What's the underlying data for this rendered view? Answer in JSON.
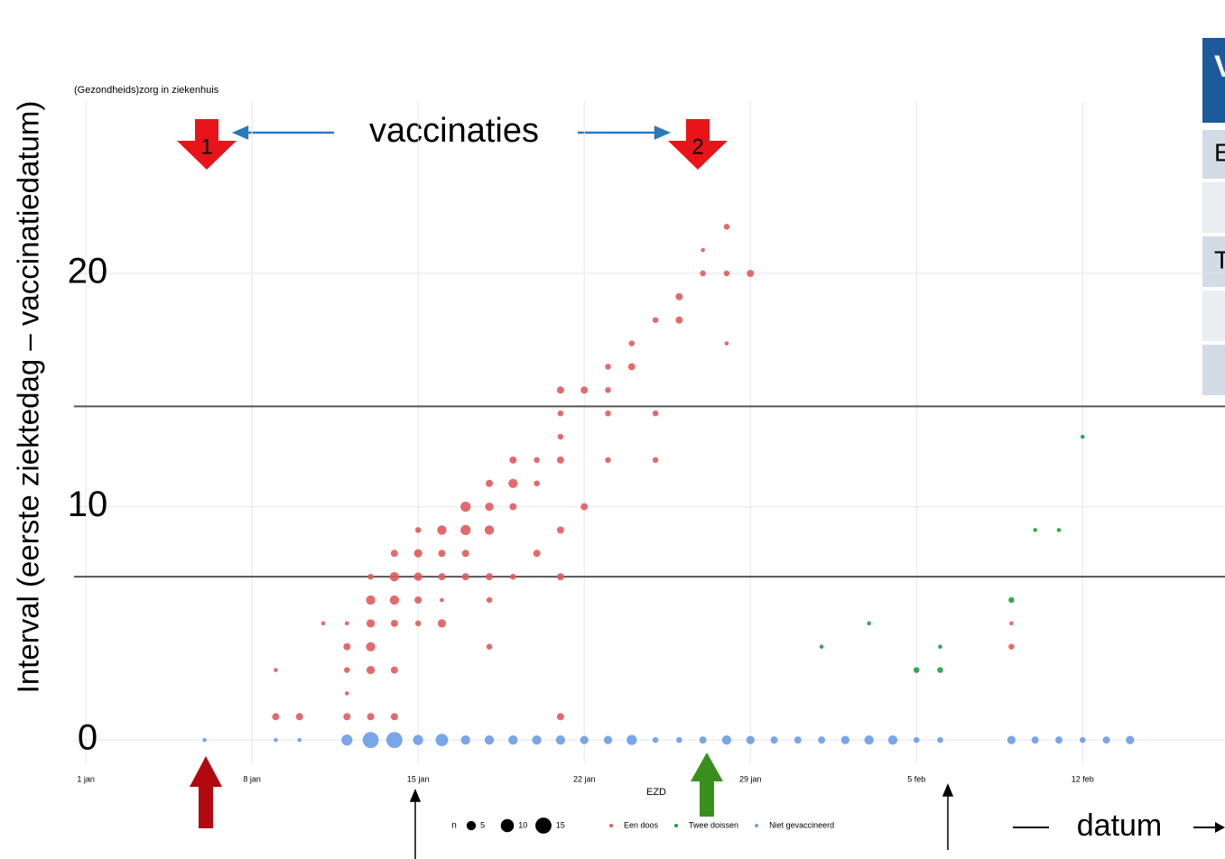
{
  "chart_data": {
    "type": "scatter",
    "subtitle": "(Gezondheids)zorg in ziekenhuis",
    "ylabel": "Interval (eerste ziektedag – vaccinatiedatum)",
    "xlabel": "EZD",
    "xlim": [
      0.5,
      49
    ],
    "ylim": [
      -1,
      27
    ],
    "xticks": [
      {
        "value": 1,
        "label": "1 jan"
      },
      {
        "value": 8,
        "label": "8 jan"
      },
      {
        "value": 15,
        "label": "15 jan"
      },
      {
        "value": 22,
        "label": "22 jan"
      },
      {
        "value": 29,
        "label": "29 jan"
      },
      {
        "value": 36,
        "label": "5 feb"
      },
      {
        "value": 43,
        "label": "12 feb"
      }
    ],
    "yticks": [
      0,
      10,
      20
    ],
    "grid": true,
    "reference_lines": [
      14.3,
      7
    ],
    "size_legend_title": "n",
    "size_legend": [
      5,
      10,
      15
    ],
    "series": [
      {
        "name": "Een doos",
        "color": "#e05a5c",
        "x": [
          9,
          9,
          10,
          11,
          12,
          12,
          12,
          12,
          12,
          13,
          13,
          13,
          13,
          13,
          13,
          14,
          14,
          14,
          14,
          14,
          14,
          15,
          15,
          15,
          15,
          15,
          16,
          16,
          16,
          16,
          16,
          17,
          17,
          17,
          17,
          18,
          18,
          18,
          18,
          18,
          18,
          19,
          19,
          19,
          19,
          20,
          20,
          20,
          21,
          21,
          21,
          21,
          21,
          21,
          21,
          22,
          22,
          23,
          23,
          23,
          23,
          24,
          24,
          25,
          25,
          25,
          26,
          26,
          27,
          27,
          28,
          28,
          28,
          29,
          40,
          40
        ],
        "values": [
          1,
          3,
          1,
          5,
          1,
          2,
          3,
          4,
          5,
          1,
          3,
          4,
          5,
          6,
          7,
          1,
          3,
          5,
          6,
          7,
          8,
          5,
          6,
          7,
          8,
          9,
          5,
          6,
          7,
          8,
          9,
          7,
          8,
          9,
          10,
          4,
          6,
          7,
          9,
          10,
          11,
          7,
          10,
          11,
          12,
          8,
          11,
          12,
          1,
          7,
          9,
          12,
          13,
          14,
          15,
          10,
          15,
          12,
          14,
          15,
          16,
          16,
          17,
          12,
          14,
          18,
          18,
          19,
          20,
          21,
          20,
          22,
          17,
          20,
          4,
          5
        ],
        "sizes": [
          3,
          1,
          3,
          1,
          3,
          1,
          2,
          3,
          1,
          3,
          4,
          5,
          4,
          5,
          2,
          3,
          3,
          3,
          5,
          5,
          3,
          2,
          3,
          4,
          4,
          2,
          4,
          1,
          3,
          3,
          5,
          3,
          3,
          6,
          6,
          2,
          2,
          3,
          5,
          4,
          3,
          2,
          3,
          5,
          3,
          3,
          2,
          2,
          3,
          3,
          3,
          3,
          2,
          2,
          3,
          3,
          3,
          2,
          2,
          2,
          2,
          3,
          2,
          2,
          2,
          2,
          3,
          3,
          2,
          1,
          2,
          2,
          1,
          3,
          2,
          1
        ]
      },
      {
        "name": "Twee doissen",
        "color": "#1f9e3c",
        "x": [
          32,
          34,
          36,
          37,
          37,
          40,
          41,
          42,
          43
        ],
        "values": [
          4,
          5,
          3,
          3,
          4,
          6,
          9,
          9,
          13
        ],
        "sizes": [
          1,
          1,
          2,
          2,
          1,
          2,
          1,
          1,
          1
        ]
      },
      {
        "name": "Niet gevaccineerd",
        "color": "#6a9be8",
        "x": [
          6,
          9,
          10,
          12,
          13,
          14,
          15,
          16,
          17,
          18,
          19,
          20,
          21,
          22,
          23,
          24,
          25,
          26,
          27,
          28,
          29,
          30,
          31,
          32,
          33,
          34,
          35,
          36,
          37,
          40,
          41,
          42,
          43,
          44,
          45
        ],
        "values": [
          0,
          0,
          0,
          0,
          0,
          0,
          0,
          0,
          0,
          0,
          0,
          0,
          0,
          0,
          0,
          0,
          0,
          0,
          0,
          0,
          0,
          0,
          0,
          0,
          0,
          0,
          0,
          0,
          0,
          0,
          0,
          0,
          0,
          0,
          0
        ],
        "sizes": [
          1,
          1,
          1,
          7,
          15,
          15,
          6,
          9,
          5,
          5,
          5,
          5,
          5,
          4,
          4,
          6,
          2,
          2,
          3,
          5,
          4,
          3,
          3,
          3,
          4,
          5,
          5,
          2,
          2,
          4,
          3,
          3,
          2,
          3,
          4
        ]
      }
    ],
    "annotations": {
      "vaccinations": "vaccinaties",
      "first": "1",
      "second": "2",
      "date": "datum"
    }
  },
  "side_table": {
    "header": "V",
    "rows": [
      "E",
      "T"
    ]
  }
}
